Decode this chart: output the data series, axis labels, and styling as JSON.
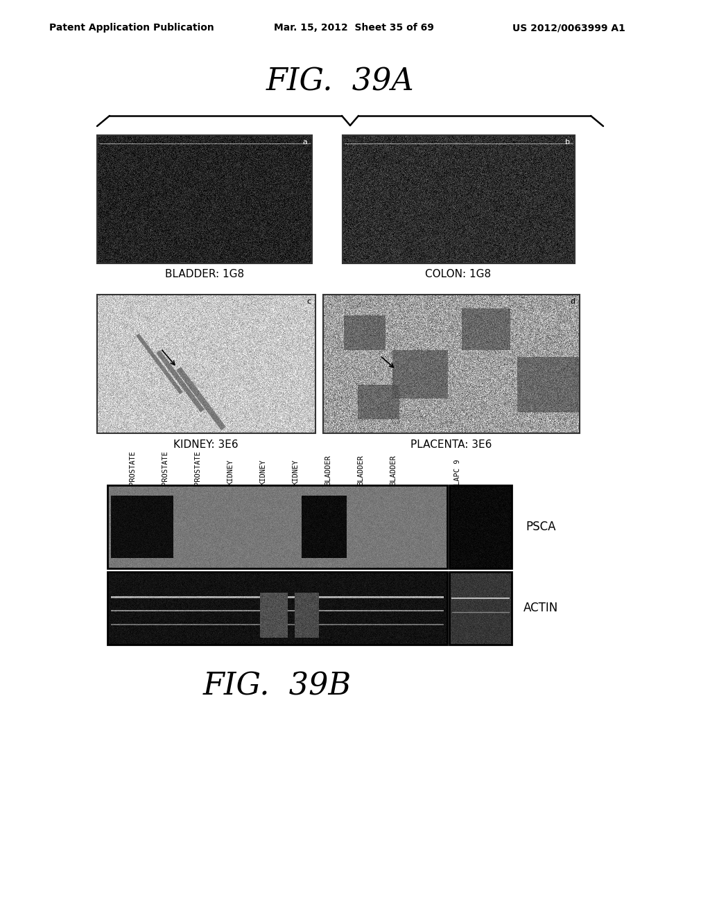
{
  "header_left": "Patent Application Publication",
  "header_mid": "Mar. 15, 2012  Sheet 35 of 69",
  "header_right": "US 2012/0063999 A1",
  "fig_title_A": "FIG.  39A",
  "fig_title_B": "FIG.  39B",
  "panel_labels": [
    "a",
    "b",
    "c",
    "d"
  ],
  "panel_captions": [
    "BLADDER: 1G8",
    "COLON: 1G8",
    "KIDNEY: 3E6",
    "PLACENTA: 3E6"
  ],
  "blot_labels_main": [
    "PROSTATE",
    "PROSTATE",
    "PROSTATE",
    "KIDNEY",
    "KIDNEY",
    "KIDNEY",
    "BLADDER",
    "BLADDER",
    "BLADDER"
  ],
  "blot_label_sep": "LAPC 9",
  "blot_row_labels": [
    "PSCA",
    "ACTIN"
  ],
  "bg_color": "#ffffff"
}
